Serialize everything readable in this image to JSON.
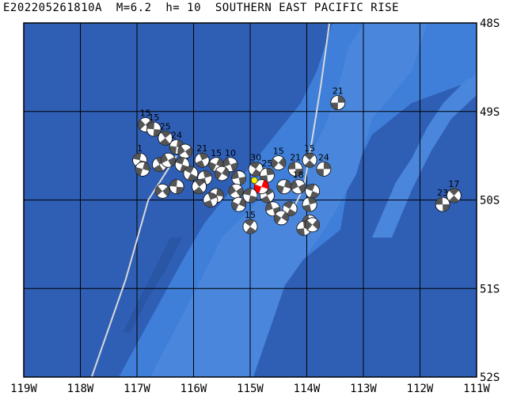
{
  "title": "E202205261810A  M=6.2  h= 10  SOUTHERN EAST PACIFIC RISE",
  "colors": {
    "deep_ocean": "#2f5fb5",
    "ridge_shallow": "#3f7fd9",
    "ridge_core": "#5a92e0",
    "grid": "#000000",
    "plate_boundary": "#d8d8d8",
    "main_event_fill": "#ff0000",
    "main_event_marker": "#ffee00",
    "beachball_dark": "#555555",
    "beachball_light": "#ffffff"
  },
  "map": {
    "lon_range": [
      -119,
      -111
    ],
    "lat_range": [
      -52,
      -48
    ],
    "lon_labels": [
      "119W",
      "118W",
      "117W",
      "116W",
      "115W",
      "114W",
      "113W",
      "112W",
      "111W"
    ],
    "lat_labels": [
      "48S",
      "49S",
      "50S",
      "51S",
      "52S"
    ]
  },
  "plate_boundaries": [
    [
      [
        -117.8,
        -52
      ],
      [
        -117.2,
        -50.9
      ],
      [
        -116.8,
        -50.0
      ],
      [
        -116.3,
        -49.5
      ]
    ],
    [
      [
        -113.6,
        -48
      ],
      [
        -113.75,
        -48.7
      ],
      [
        -113.9,
        -49.3
      ],
      [
        -114.05,
        -49.85
      ],
      [
        -114.2,
        -50.05
      ]
    ]
  ],
  "events": [
    {
      "lon": -113.45,
      "lat": -48.9,
      "label": "21"
    },
    {
      "lon": -116.85,
      "lat": -49.15,
      "label": "15"
    },
    {
      "lon": -116.7,
      "lat": -49.2,
      "label": "15"
    },
    {
      "lon": -116.5,
      "lat": -49.3,
      "label": "25"
    },
    {
      "lon": -116.3,
      "lat": -49.4,
      "label": "24"
    },
    {
      "lon": -116.15,
      "lat": -49.45,
      "label": ""
    },
    {
      "lon": -116.95,
      "lat": -49.55,
      "label": "1"
    },
    {
      "lon": -116.6,
      "lat": -49.6,
      "label": ""
    },
    {
      "lon": -116.9,
      "lat": -49.65,
      "label": ""
    },
    {
      "lon": -116.45,
      "lat": -49.55,
      "label": ""
    },
    {
      "lon": -116.2,
      "lat": -49.6,
      "label": ""
    },
    {
      "lon": -115.85,
      "lat": -49.55,
      "label": "21"
    },
    {
      "lon": -115.6,
      "lat": -49.6,
      "label": "15"
    },
    {
      "lon": -115.35,
      "lat": -49.6,
      "label": "10"
    },
    {
      "lon": -116.05,
      "lat": -49.7,
      "label": ""
    },
    {
      "lon": -115.8,
      "lat": -49.75,
      "label": ""
    },
    {
      "lon": -115.5,
      "lat": -49.7,
      "label": ""
    },
    {
      "lon": -115.2,
      "lat": -49.75,
      "label": ""
    },
    {
      "lon": -114.9,
      "lat": -49.65,
      "label": "30"
    },
    {
      "lon": -114.7,
      "lat": -49.72,
      "label": "25"
    },
    {
      "lon": -114.5,
      "lat": -49.58,
      "label": "15"
    },
    {
      "lon": -114.2,
      "lat": -49.65,
      "label": "21"
    },
    {
      "lon": -113.95,
      "lat": -49.55,
      "label": "15"
    },
    {
      "lon": -113.7,
      "lat": -49.65,
      "label": "24"
    },
    {
      "lon": -116.55,
      "lat": -49.9,
      "label": ""
    },
    {
      "lon": -116.3,
      "lat": -49.85,
      "label": ""
    },
    {
      "lon": -115.9,
      "lat": -49.85,
      "label": ""
    },
    {
      "lon": -115.6,
      "lat": -49.95,
      "label": ""
    },
    {
      "lon": -115.25,
      "lat": -49.9,
      "label": ""
    },
    {
      "lon": -115.0,
      "lat": -49.95,
      "label": ""
    },
    {
      "lon": -114.7,
      "lat": -49.95,
      "label": ""
    },
    {
      "lon": -114.4,
      "lat": -49.85,
      "label": ""
    },
    {
      "lon": -114.15,
      "lat": -49.85,
      "label": "18"
    },
    {
      "lon": -113.9,
      "lat": -49.9,
      "label": ""
    },
    {
      "lon": -115.7,
      "lat": -50.0,
      "label": ""
    },
    {
      "lon": -115.2,
      "lat": -50.05,
      "label": ""
    },
    {
      "lon": -114.6,
      "lat": -50.1,
      "label": ""
    },
    {
      "lon": -114.3,
      "lat": -50.1,
      "label": ""
    },
    {
      "lon": -113.95,
      "lat": -50.05,
      "label": ""
    },
    {
      "lon": -114.45,
      "lat": -50.2,
      "label": ""
    },
    {
      "lon": -113.95,
      "lat": -50.25,
      "label": ""
    },
    {
      "lon": -115.0,
      "lat": -50.3,
      "label": "15"
    },
    {
      "lon": -114.05,
      "lat": -50.32,
      "label": ""
    },
    {
      "lon": -113.9,
      "lat": -50.28,
      "label": ""
    },
    {
      "lon": -111.6,
      "lat": -50.05,
      "label": "23"
    },
    {
      "lon": -111.4,
      "lat": -49.95,
      "label": "17"
    }
  ],
  "main_event": {
    "lon": -114.8,
    "lat": -49.85,
    "label": ""
  }
}
